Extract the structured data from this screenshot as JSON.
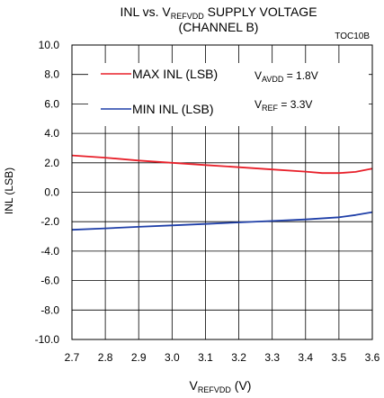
{
  "chart_data": {
    "type": "line",
    "title_main": "INL vs. V",
    "title_sub": "REFVDD",
    "title_rest": " SUPPLY VOLTAGE",
    "title_line2": "(CHANNEL B)",
    "code": "TOC10B",
    "xlabel_main": "V",
    "xlabel_sub": "REFVDD",
    "xlabel_rest": " (V)",
    "ylabel": "INL (LSB)",
    "xlim": [
      2.7,
      3.6
    ],
    "ylim": [
      -10,
      10
    ],
    "x_ticks": [
      "2.7",
      "2.8",
      "2.9",
      "3.0",
      "3.1",
      "3.2",
      "3.3",
      "3.4",
      "3.5",
      "3.6"
    ],
    "y_ticks": [
      "-10.0",
      "-8.0",
      "-6.0",
      "-4.0",
      "-2.0",
      "0.0",
      "2.0",
      "4.0",
      "6.0",
      "8.0",
      "10.0"
    ],
    "grid": true,
    "series": [
      {
        "name": "MAX INL (LSB)",
        "color": "#e8202a",
        "x": [
          2.7,
          2.8,
          2.9,
          3.0,
          3.1,
          3.2,
          3.3,
          3.4,
          3.45,
          3.5,
          3.55,
          3.6
        ],
        "y": [
          2.5,
          2.35,
          2.15,
          2.0,
          1.85,
          1.7,
          1.55,
          1.4,
          1.3,
          1.3,
          1.38,
          1.6
        ]
      },
      {
        "name": "MIN INL (LSB)",
        "color": "#1f3fa8",
        "x": [
          2.7,
          2.8,
          2.9,
          3.0,
          3.1,
          3.2,
          3.3,
          3.4,
          3.5,
          3.55,
          3.6
        ],
        "y": [
          -2.55,
          -2.45,
          -2.35,
          -2.25,
          -2.15,
          -2.05,
          -1.95,
          -1.85,
          -1.7,
          -1.55,
          -1.35
        ]
      }
    ],
    "annotations": [
      {
        "main": "V",
        "sub": "AVDD",
        "rest": " = 1.8V"
      },
      {
        "main": "V",
        "sub": "REF",
        "rest": " = 3.3V"
      }
    ]
  }
}
